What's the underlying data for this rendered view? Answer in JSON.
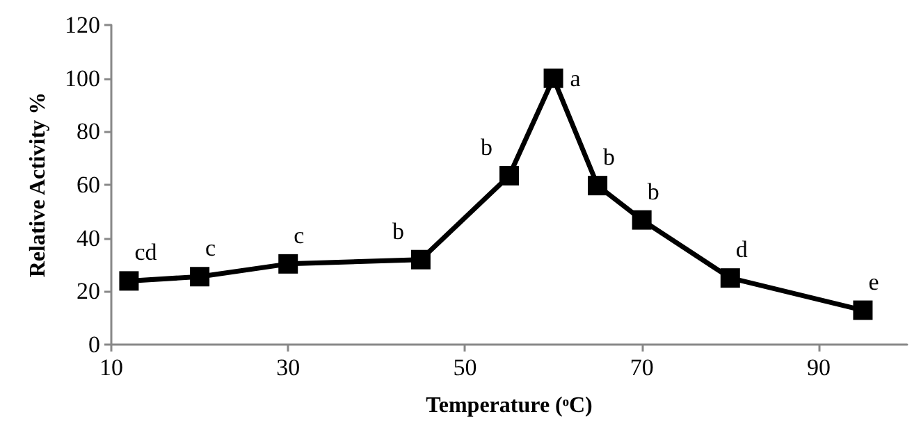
{
  "chart_data": {
    "type": "line",
    "xlabel": "Temperature (ᵒC)",
    "ylabel": "Relative Activity %",
    "x": [
      12,
      20,
      30,
      45,
      55,
      60,
      65,
      70,
      80,
      95
    ],
    "series": [
      {
        "color": "#000000",
        "values": [
          23.9,
          25.5,
          30.3,
          31.9,
          63.4,
          100,
          59.7,
          46.8,
          25,
          12.9
        ]
      }
    ],
    "xlim": [
      10,
      100
    ],
    "xticks": [
      10,
      30,
      50,
      70,
      90
    ],
    "ylim": [
      0,
      120
    ],
    "yticks": [
      0,
      20,
      40,
      60,
      80,
      100,
      120
    ],
    "grid": false,
    "marker": "square",
    "line_style": "solid",
    "annotations": [
      {
        "text": "cd",
        "x": 12,
        "y": 23.9
      },
      {
        "text": "c",
        "x": 20,
        "y": 25.5
      },
      {
        "text": "c",
        "x": 30,
        "y": 30.3
      },
      {
        "text": "b",
        "x": 45,
        "y": 31.9
      },
      {
        "text": "b",
        "x": 55,
        "y": 63.4
      },
      {
        "text": "a",
        "x": 60,
        "y": 100
      },
      {
        "text": "b",
        "x": 65,
        "y": 59.7
      },
      {
        "text": "b",
        "x": 70,
        "y": 46.8
      },
      {
        "text": "d",
        "x": 80,
        "y": 25
      },
      {
        "text": "e",
        "x": 95,
        "y": 12.9
      }
    ]
  }
}
